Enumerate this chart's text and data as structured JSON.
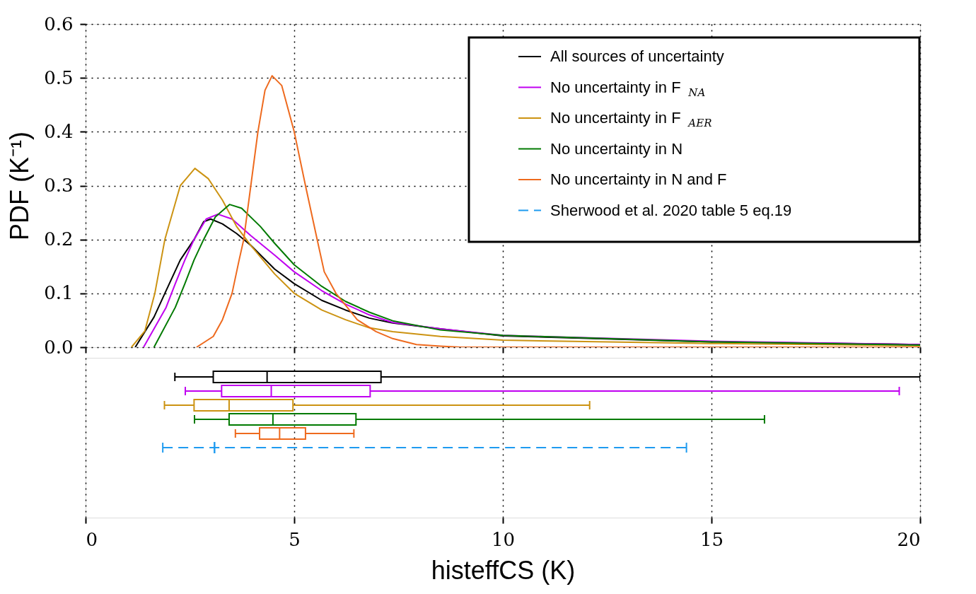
{
  "chart_data": [
    {
      "type": "line",
      "ylabel": "PDF (K⁻¹)",
      "xlim": [
        0,
        20
      ],
      "xticks": [
        0,
        5,
        10,
        15,
        20
      ],
      "ylim": [
        0,
        0.6
      ],
      "yticks": [
        {
          "value": 0,
          "label": "0.0"
        },
        0.1,
        0.2,
        0.3,
        0.4,
        0.5,
        0.6
      ],
      "tick_labels": "y",
      "grid": true,
      "legend": "top right",
      "line_style": "solid",
      "marker": "none",
      "series": [
        {
          "name": "All sources of uncertainty",
          "color": "#000000",
          "x": [
            1.19,
            1.64,
            1.9,
            2.27,
            2.6,
            2.83,
            3.0,
            3.28,
            3.62,
            3.96,
            4.53,
            5.0,
            5.66,
            6.23,
            6.8,
            7.36,
            8.5,
            10,
            15,
            20
          ],
          "values": [
            0,
            0.056,
            0.1,
            0.162,
            0.2,
            0.233,
            0.238,
            0.229,
            0.211,
            0.189,
            0.145,
            0.118,
            0.087,
            0.069,
            0.054,
            0.045,
            0.034,
            0.021,
            0.01,
            0.005
          ]
        },
        {
          "name": "No uncertainty in F$_{NA}$",
          "color": "#c000f0",
          "x": [
            1.39,
            1.93,
            2.15,
            2.38,
            2.6,
            2.89,
            3.17,
            3.51,
            3.96,
            4.53,
            5.0,
            5.66,
            6.23,
            6.8,
            7.36,
            8.5,
            10,
            15,
            20
          ],
          "values": [
            0,
            0.074,
            0.118,
            0.162,
            0.2,
            0.238,
            0.247,
            0.238,
            0.207,
            0.171,
            0.14,
            0.105,
            0.08,
            0.06,
            0.046,
            0.034,
            0.022,
            0.011,
            0.005
          ]
        },
        {
          "name": "No uncertainty in F$_{AER}$",
          "color": "#cc9312",
          "x": [
            1.1,
            1.42,
            1.66,
            1.9,
            2.27,
            2.62,
            2.94,
            3.28,
            3.62,
            3.96,
            4.53,
            5.0,
            5.66,
            6.23,
            6.8,
            7.36,
            8.5,
            10,
            15,
            20
          ],
          "values": [
            0,
            0.03,
            0.1,
            0.2,
            0.3,
            0.332,
            0.313,
            0.273,
            0.224,
            0.189,
            0.136,
            0.1,
            0.069,
            0.051,
            0.036,
            0.029,
            0.02,
            0.013,
            0.007,
            0.003
          ]
        },
        {
          "name": "No uncertainty in N",
          "color": "#007a00",
          "x": [
            1.64,
            2.15,
            2.38,
            2.6,
            2.83,
            3.11,
            3.45,
            3.74,
            4.19,
            4.53,
            5.0,
            5.66,
            6.23,
            6.8,
            7.36,
            8.5,
            10,
            15,
            20
          ],
          "values": [
            0,
            0.074,
            0.118,
            0.162,
            0.2,
            0.242,
            0.265,
            0.258,
            0.224,
            0.193,
            0.153,
            0.113,
            0.085,
            0.065,
            0.049,
            0.032,
            0.022,
            0.01,
            0.004
          ]
        },
        {
          "name": "No uncertainty in N and F",
          "color": "#ee6a1e",
          "x": [
            2.66,
            3.06,
            3.28,
            3.51,
            3.68,
            3.79,
            3.96,
            4.13,
            4.3,
            4.47,
            4.7,
            5.0,
            5.27,
            5.55,
            5.72,
            6.0,
            6.23,
            6.51,
            6.96,
            7.36,
            7.93,
            8.5,
            9.0,
            20
          ],
          "values": [
            0,
            0.02,
            0.051,
            0.1,
            0.162,
            0.2,
            0.3,
            0.4,
            0.477,
            0.504,
            0.486,
            0.4,
            0.3,
            0.2,
            0.14,
            0.1,
            0.078,
            0.051,
            0.029,
            0.016,
            0.005,
            0.002,
            0,
            0
          ]
        }
      ]
    },
    {
      "type": "box",
      "orientation": "horizontal",
      "xlabel": "histeffCS (K)",
      "xlim": [
        0,
        20
      ],
      "xticks": [
        0,
        5,
        10,
        15,
        20
      ],
      "tick_labels": "x",
      "grid": "x",
      "series": [
        {
          "color": "#000000",
          "boxes": [
            {
              "low": 2.14,
              "q1": 3.06,
              "median": 4.35,
              "q3": 7.08,
              "high": 20
            }
          ]
        },
        {
          "color": "#c000f0",
          "boxes": [
            {
              "low": 2.39,
              "q1": 3.26,
              "median": 4.45,
              "q3": 6.82,
              "high": 19.5
            }
          ]
        },
        {
          "color": "#cc9312",
          "boxes": [
            {
              "low": 1.89,
              "q1": 2.6,
              "median": 3.44,
              "q3": 4.97,
              "high": 12.08
            }
          ]
        },
        {
          "color": "#007a00",
          "boxes": [
            {
              "low": 2.61,
              "q1": 3.44,
              "median": 4.49,
              "q3": 6.48,
              "high": 16.27
            }
          ]
        },
        {
          "color": "#ee6a1e",
          "boxes": [
            {
              "low": 3.59,
              "q1": 4.17,
              "median": 4.65,
              "q3": 5.27,
              "high": 6.43
            }
          ]
        },
        {
          "name": "Sherwood et al. 2020 table 5 eq.19",
          "color": "#1e9bf0",
          "line_style": "dashed",
          "boxes": [
            {
              "low": 1.85,
              "q1": 3.09,
              "median": 3.09,
              "q3": 3.09,
              "high": 14.4
            }
          ]
        }
      ]
    }
  ]
}
